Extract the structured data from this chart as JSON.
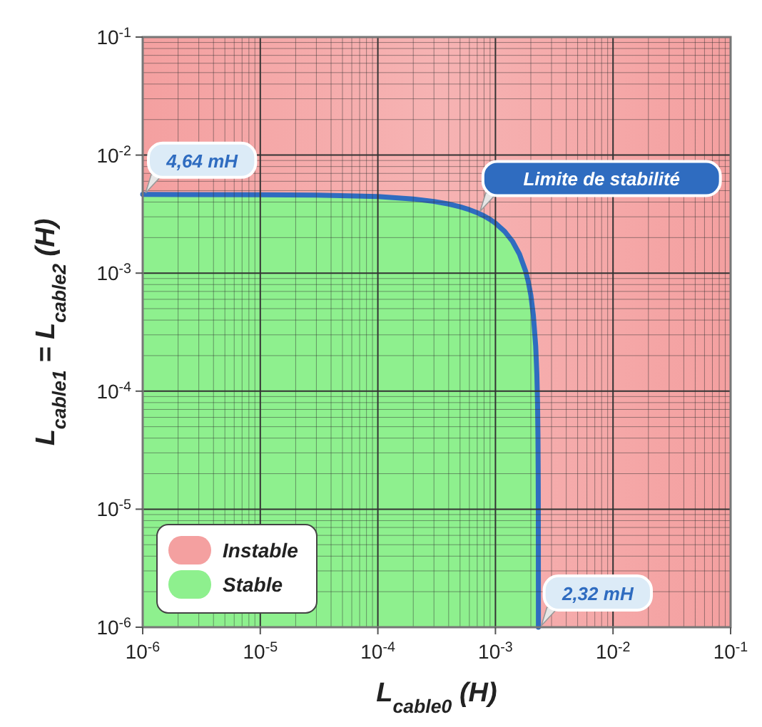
{
  "chart_data": {
    "type": "area",
    "xlabel": "L$_{cable0}$ (H)",
    "ylabel": "L$_{cable1}$ = L$_{cable2}$ (H)",
    "log": "xy",
    "grid": true,
    "legend": "bottom left",
    "xlim": [
      1e-06,
      0.1
    ],
    "ylim": [
      1e-06,
      0.1
    ],
    "xticks": [
      {
        "value": 1e-06,
        "label": "10$^{-6}$"
      },
      {
        "value": 1e-05,
        "label": "10$^{-5}$"
      },
      {
        "value": 0.0001,
        "label": "10$^{-4}$"
      },
      {
        "value": 0.001,
        "label": "10$^{-3}$"
      },
      {
        "value": 0.01,
        "label": "10$^{-2}$"
      },
      {
        "value": 0.1,
        "label": "10$^{-1}$"
      }
    ],
    "yticks": [
      {
        "value": 1e-06,
        "label": "10$^{-6}$"
      },
      {
        "value": 1e-05,
        "label": "10$^{-5}$"
      },
      {
        "value": 0.0001,
        "label": "10$^{-4}$"
      },
      {
        "value": 0.001,
        "label": "10$^{-3}$"
      },
      {
        "value": 0.01,
        "label": "10$^{-2}$"
      },
      {
        "value": 0.1,
        "label": "10$^{-1}$"
      }
    ],
    "bands": [
      {
        "axis": "x",
        "from": 1e-06,
        "to": 0.1,
        "label": "Instable",
        "color": "#f4a0a0"
      }
    ],
    "series": [
      {
        "name": "Stable",
        "type": "area",
        "color": "#8ef08e",
        "x": [
          1e-06,
          1e-05,
          3e-05,
          0.0001,
          0.0002,
          0.0003,
          0.0004,
          0.0005,
          0.0006,
          0.0007,
          0.0008,
          0.0009,
          0.001,
          0.0012,
          0.0014,
          0.0016,
          0.0018,
          0.0019,
          0.002,
          0.0021,
          0.0022,
          0.00225,
          0.00228,
          0.0023,
          0.00231,
          0.002315,
          0.002319,
          0.00232
        ],
        "values": [
          0.00464,
          0.00462,
          0.00458,
          0.00445,
          0.00425,
          0.00405,
          0.00385,
          0.00365,
          0.00345,
          0.00325,
          0.00305,
          0.00285,
          0.00265,
          0.00225,
          0.00185,
          0.00145,
          0.00105,
          0.00085,
          0.00065,
          0.00044,
          0.00024,
          0.00014,
          8e-05,
          4e-05,
          2e-05,
          1e-05,
          2e-06,
          1e-06
        ]
      }
    ],
    "annotations": [
      {
        "text": "4,64 mH",
        "x": 1e-06,
        "y": 0.00464
      },
      {
        "text": "2,32 mH",
        "x": 0.00232,
        "y": 1e-06
      },
      {
        "text": "Limite de stabilité",
        "x": 0.0007,
        "y": 0.00325
      }
    ]
  }
}
